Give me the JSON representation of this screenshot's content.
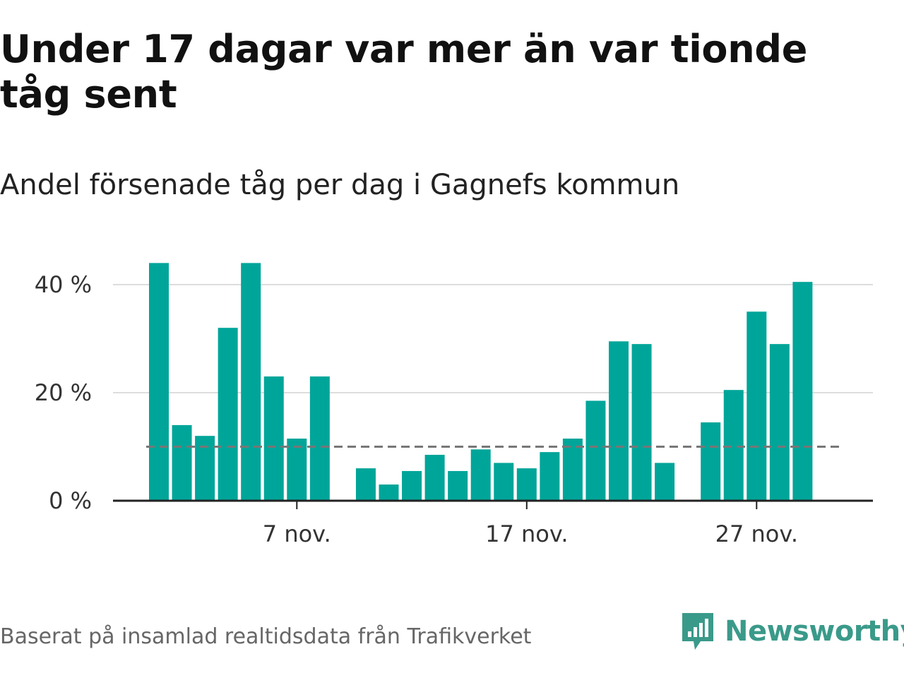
{
  "header": {
    "title": "Under 17 dagar var mer än var tionde tåg sent",
    "subtitle": "Andel försenade tåg per dag i Gagnefs kommun"
  },
  "footer": {
    "source": "Baserat på insamlad realtidsdata från Trafikverket"
  },
  "brand": {
    "name": "Newsworthy",
    "color": "#3a9a8a",
    "icon": "newsworthy-logo-icon"
  },
  "colors": {
    "bar": "#00a599",
    "threshold": "#777777",
    "grid": "#dddddd",
    "axis": "#222222"
  },
  "chart_data": {
    "type": "bar",
    "title": "Under 17 dagar var mer än var tionde tåg sent",
    "subtitle": "Andel försenade tåg per dag i Gagnefs kommun",
    "xlabel": "",
    "ylabel": "",
    "ylim": [
      0,
      45
    ],
    "y_ticks": [
      0,
      20,
      40
    ],
    "y_tick_labels": [
      "0 %",
      "20 %",
      "40 %"
    ],
    "x_tick_days": [
      7,
      17,
      27
    ],
    "x_tick_labels": [
      "7 nov.",
      "17 nov.",
      "27 nov."
    ],
    "grid": "horizontal",
    "threshold": {
      "value": 10,
      "style": "dashed"
    },
    "x": [
      1,
      2,
      3,
      4,
      5,
      6,
      7,
      8,
      9,
      10,
      11,
      12,
      13,
      14,
      15,
      16,
      17,
      18,
      19,
      20,
      21,
      22,
      23,
      24,
      25,
      26,
      27,
      28,
      29,
      30
    ],
    "values": [
      44,
      14,
      12,
      32,
      44,
      23,
      11.5,
      23,
      null,
      6,
      3,
      5.5,
      8.5,
      5.5,
      9.5,
      7,
      6,
      9,
      11.5,
      18.5,
      29.5,
      29,
      7,
      null,
      14.5,
      20.5,
      35,
      29,
      40.5,
      null
    ]
  }
}
